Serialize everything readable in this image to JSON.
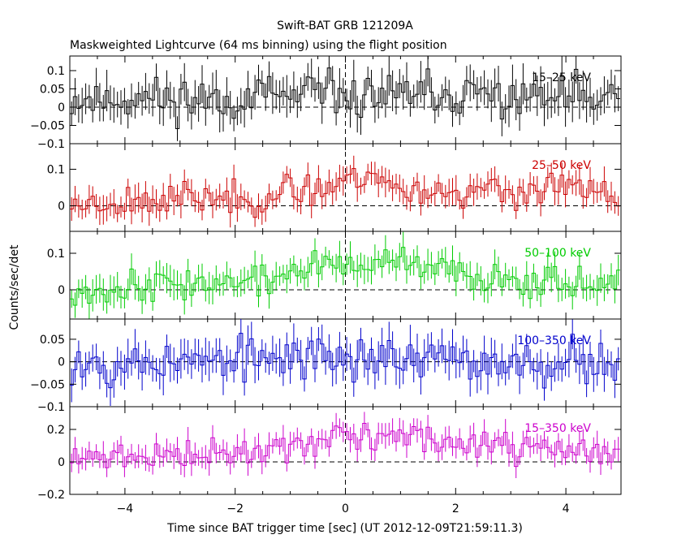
{
  "chart_data": {
    "type": "line",
    "title": "Swift-BAT GRB 121209A",
    "subtitle": "Maskweighted Lightcurve (64 ms binning) using the flight position",
    "xlabel": "Time since BAT trigger time [sec] (UT 2012-12-09T21:59:11.3)",
    "ylabel": "Counts/sec/det",
    "xlim": [
      -5,
      5
    ],
    "x_ticks": [
      -4,
      -2,
      0,
      2,
      4
    ],
    "x_tick_labels": [
      "−4",
      "−2",
      "0",
      "2",
      "4"
    ],
    "bin_width_sec": 0.064,
    "panels": [
      {
        "band": "15–25 keV",
        "color": "#000000",
        "ylim": [
          -0.1,
          0.14
        ],
        "y_ticks": [
          -0.1,
          -0.05,
          0,
          0.05,
          0.1
        ],
        "y_tick_labels": [
          "−0.1",
          "−0.05",
          "0",
          "0.05",
          "0.1"
        ],
        "err_amp": 0.045,
        "noise_amp": 0.03,
        "seed": 11,
        "profile": [
          [
            -5,
            0.02
          ],
          [
            -2,
            0.025
          ],
          [
            0,
            0.03
          ],
          [
            2,
            0.03
          ],
          [
            5,
            0.02
          ]
        ]
      },
      {
        "band": "25–50 keV",
        "color": "#cc0000",
        "ylim": [
          -0.07,
          0.17
        ],
        "y_ticks": [
          0,
          0.1
        ],
        "y_tick_labels": [
          "0",
          "0.1"
        ],
        "err_amp": 0.032,
        "noise_amp": 0.022,
        "seed": 23,
        "profile": [
          [
            -5,
            0.005
          ],
          [
            -3,
            0.02
          ],
          [
            -1.5,
            0.02
          ],
          [
            -0.5,
            0.05
          ],
          [
            0.5,
            0.09
          ],
          [
            1,
            0.04
          ],
          [
            2,
            0.04
          ],
          [
            3,
            0.035
          ],
          [
            4,
            0.05
          ],
          [
            5,
            0.02
          ]
        ]
      },
      {
        "band": "50–100 keV",
        "color": "#00cc00",
        "ylim": [
          -0.08,
          0.16
        ],
        "y_ticks": [
          0,
          0.1
        ],
        "y_tick_labels": [
          "0",
          "0.1"
        ],
        "err_amp": 0.034,
        "noise_amp": 0.022,
        "seed": 37,
        "profile": [
          [
            -5,
            -0.005
          ],
          [
            -4,
            0.01
          ],
          [
            -3,
            0.02
          ],
          [
            -1.5,
            0.02
          ],
          [
            -0.7,
            0.06
          ],
          [
            0.2,
            0.07
          ],
          [
            1,
            0.07
          ],
          [
            2,
            0.045
          ],
          [
            3,
            0.03
          ],
          [
            4,
            0.03
          ],
          [
            5,
            0.0
          ]
        ]
      },
      {
        "band": "100–350 keV",
        "color": "#0000cc",
        "ylim": [
          -0.1,
          0.095
        ],
        "y_ticks": [
          -0.1,
          -0.05,
          0,
          0.05
        ],
        "y_tick_labels": [
          "−0.1",
          "−0.05",
          "0",
          "0.05"
        ],
        "err_amp": 0.035,
        "noise_amp": 0.025,
        "seed": 53,
        "profile": [
          [
            -5,
            0.0
          ],
          [
            -2,
            0.0
          ],
          [
            0,
            0.015
          ],
          [
            2,
            0.0
          ],
          [
            5,
            0.0
          ]
        ]
      },
      {
        "band": "15–350 keV",
        "color": "#cc00cc",
        "ylim": [
          -0.2,
          0.34
        ],
        "y_ticks": [
          -0.2,
          0,
          0.2
        ],
        "y_tick_labels": [
          "−0.2",
          "0",
          "0.2"
        ],
        "err_amp": 0.065,
        "noise_amp": 0.045,
        "seed": 71,
        "profile": [
          [
            -5,
            0.0
          ],
          [
            -4,
            0.04
          ],
          [
            -3,
            0.04
          ],
          [
            -2,
            0.05
          ],
          [
            -1,
            0.1
          ],
          [
            0,
            0.16
          ],
          [
            1,
            0.16
          ],
          [
            2,
            0.12
          ],
          [
            3,
            0.08
          ],
          [
            4,
            0.08
          ],
          [
            5,
            0.05
          ]
        ]
      }
    ]
  }
}
